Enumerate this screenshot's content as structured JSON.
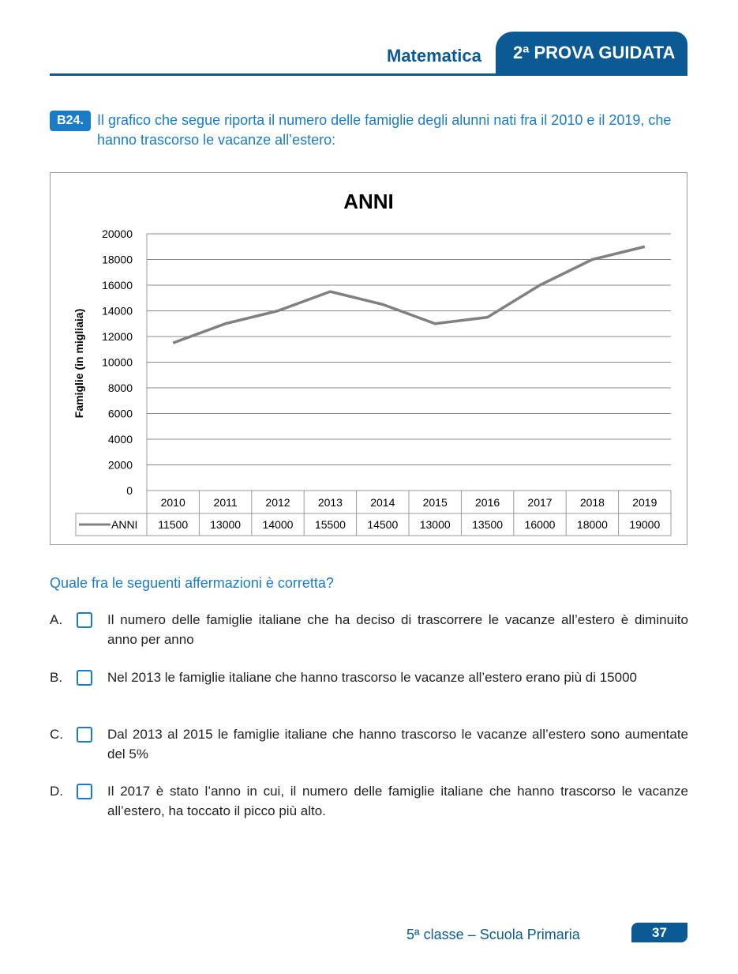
{
  "header": {
    "subject": "Matematica",
    "tab": "2ª PROVA GUIDATA"
  },
  "question": {
    "number": "B24.",
    "text": "Il grafico che segue riporta il numero delle famiglie degli alunni nati fra il 2010 e il 2019, che hanno trascorso le vacanze all’estero:",
    "prompt": "Quale fra le seguenti affermazioni è corretta?"
  },
  "chart_data": {
    "type": "line",
    "title": "ANNI",
    "xlabel": "",
    "ylabel": "Famiglie (in migliaia)",
    "ylim": [
      0,
      20000
    ],
    "yticks": [
      "0",
      "2000",
      "4000",
      "6000",
      "8000",
      "10000",
      "12000",
      "14000",
      "16000",
      "18000",
      "20000"
    ],
    "categories": [
      "2010",
      "2011",
      "2012",
      "2013",
      "2014",
      "2015",
      "2016",
      "2017",
      "2018",
      "2019"
    ],
    "series": [
      {
        "name": "ANNI",
        "values": [
          11500,
          13000,
          14000,
          15500,
          14500,
          13000,
          13500,
          16000,
          18000,
          19000
        ],
        "color": "#808080"
      }
    ],
    "grid": true,
    "legend": "bottom data table"
  },
  "options": [
    {
      "letter": "A.",
      "text": "Il numero delle famiglie italiane che ha deciso di trascorrere le vacanze all’estero è diminuito anno per anno"
    },
    {
      "letter": "B.",
      "text": "Nel 2013 le famiglie italiane che hanno trascorso le vacanze all’estero erano più di 15000"
    },
    {
      "letter": "C.",
      "text": "Dal 2013 al 2015 le famiglie italiane che hanno trascorso le vacanze all’estero sono aumentate del 5%"
    },
    {
      "letter": "D.",
      "text": "Il 2017 è stato l’anno in cui, il numero delle famiglie italiane che hanno trascorso le vacanze all’estero, ha toccato il picco più alto."
    }
  ],
  "footer": {
    "text": "5ª classe – Scuola Primaria",
    "page": "37"
  }
}
